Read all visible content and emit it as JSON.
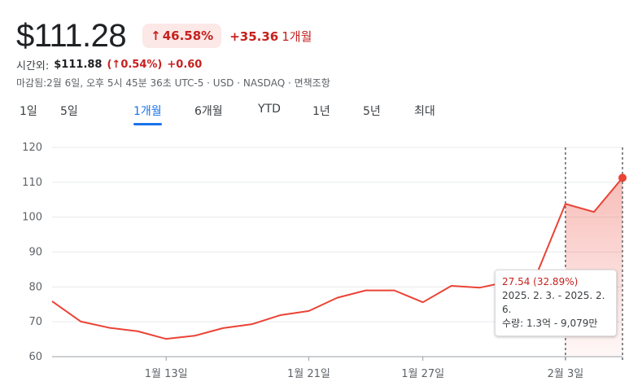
{
  "header": {
    "price": "$111.28",
    "pct_change": "46.58%",
    "abs_change": "+35.36",
    "period": "1개월",
    "up_icon": "arrow-up-icon"
  },
  "after_hours": {
    "label": "시간외:",
    "price": "$111.88",
    "pct": "(↑0.54%)",
    "change": "+0.60"
  },
  "meta_text": "마감됨:2월 6일, 오후 5시 45분 36초 UTC-5 · USD · NASDAQ · 면책조항",
  "tabs": [
    "1일",
    "5일",
    "1개월",
    "6개월",
    "YTD",
    "1년",
    "5년",
    "최대"
  ],
  "active_tab": "1개월",
  "colors": {
    "accent": "#1a73e8",
    "negative_red": "#c5221f",
    "line": "#ea4335",
    "grid": "#e8eaed"
  },
  "tooltip": {
    "change": "27.54 (32.89%)",
    "range": "2025. 2. 3. - 2025. 2. 6.",
    "volume": "수량: 1.3억 - 9,079만"
  },
  "chart_data": {
    "type": "area",
    "title": "",
    "xlabel": "",
    "ylabel": "",
    "ylim": [
      60,
      120
    ],
    "y_ticks": [
      "120",
      "110",
      "100",
      "90",
      "80",
      "70",
      "60"
    ],
    "x_tick_labels": [
      "1월 13일",
      "1월 21일",
      "1월 27일",
      "2월 3일"
    ],
    "grid": true,
    "series": [
      {
        "values": [
          75.9,
          70.1,
          68.3,
          67.3,
          65.1,
          66.0,
          68.2,
          69.3,
          71.9,
          73.1,
          76.9,
          79.0,
          79.0,
          75.6,
          80.3,
          79.8,
          81.5,
          83.8,
          103.8,
          101.5,
          111.28
        ]
      }
    ],
    "tick_index": [
      4,
      9,
      13,
      18
    ],
    "selection_start_index": 18,
    "selection_end_index": 21
  }
}
